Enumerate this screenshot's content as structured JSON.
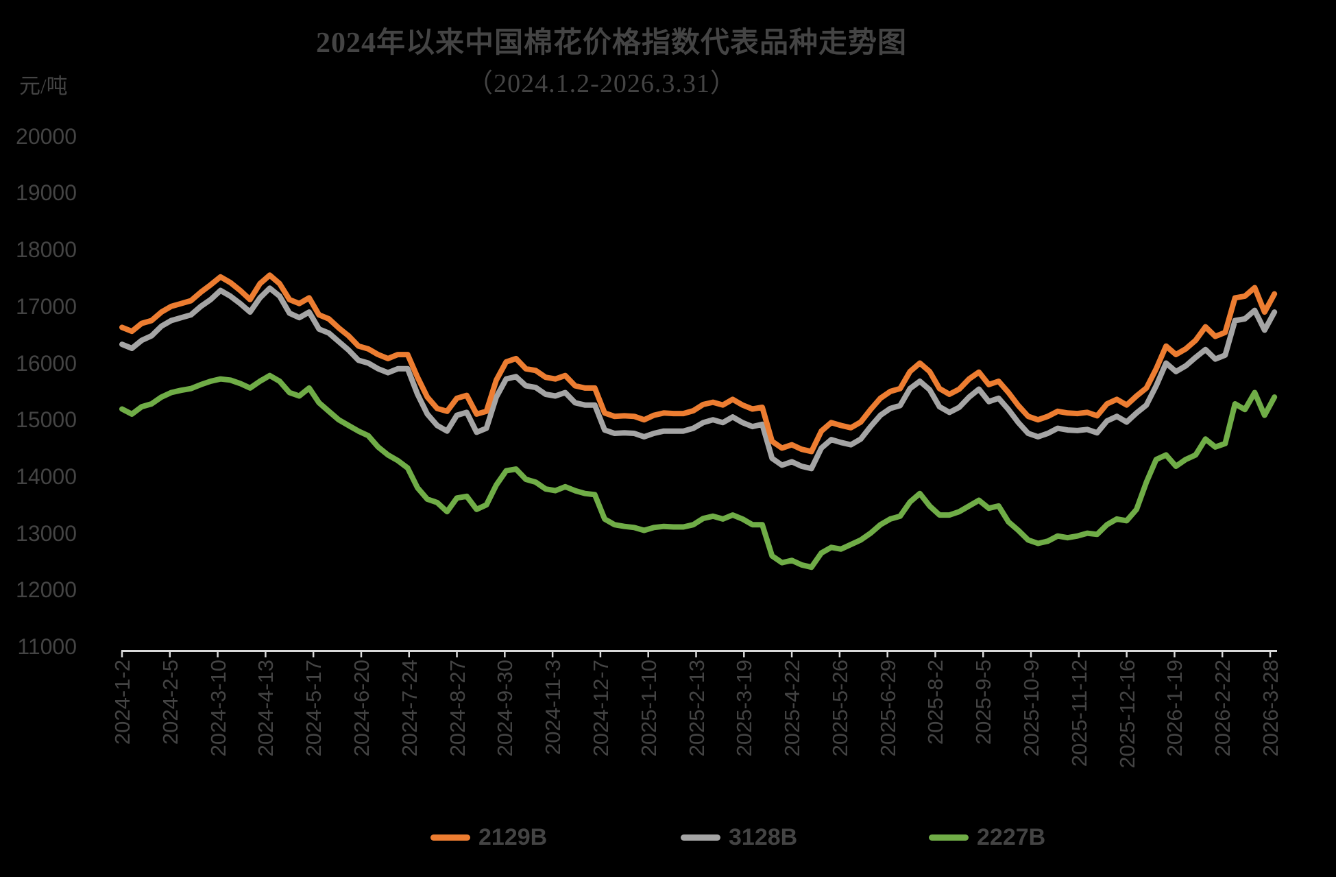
{
  "title": "2024年以来中国棉花价格指数代表品种走势图",
  "subtitle": "（2024.1.2-2026.3.31）",
  "y_axis": {
    "unit": "元/吨",
    "min": 11000,
    "max": 20000,
    "tick_step": 1000,
    "tick_labels": [
      "20000",
      "19000",
      "18000",
      "17000",
      "16000",
      "15000",
      "14000",
      "13000",
      "12000",
      "11000"
    ]
  },
  "x_axis": {
    "tick_interval_days": 34,
    "tick_labels": [
      "2024-1-2",
      "2024-2-5",
      "2024-3-10",
      "2024-4-13",
      "2024-5-17",
      "2024-6-20",
      "2024-7-24",
      "2024-8-27",
      "2024-9-30",
      "2024-11-3",
      "2024-12-7",
      "2025-1-10",
      "2025-2-13",
      "2025-3-19",
      "2025-4-22",
      "2025-5-26",
      "2025-6-29",
      "2025-8-2",
      "2025-9-5",
      "2025-10-9",
      "2025-11-12",
      "2025-12-16",
      "2026-1-19",
      "2026-2-22",
      "2026-3-28"
    ]
  },
  "legend": [
    {
      "label": "2129B",
      "color": "#ED7D31"
    },
    {
      "label": "3128B",
      "color": "#A5A5A5"
    },
    {
      "label": "2227B",
      "color": "#70AD47"
    }
  ],
  "colors": {
    "background": "#000000",
    "axis_line": "#D9D9D9",
    "text": "#444444",
    "series_2129B": "#ED7D31",
    "series_3128B": "#A5A5A5",
    "series_2227B": "#70AD47"
  },
  "chart_data": {
    "type": "line",
    "title": "2024年以来中国棉花价格指数代表品种走势图（2024.1.2-2026.3.31）",
    "ylabel": "元/吨",
    "ylim": [
      11000,
      20000
    ],
    "x_range": [
      "2024-1-2",
      "2026-3-31"
    ],
    "x_start_date": "2024-1-2",
    "x_step_days": 7,
    "x_total_days": 819,
    "grid": false,
    "legend_position": "bottom",
    "series": [
      {
        "name": "2129B",
        "color": "#ED7D31",
        "values": [
          16630,
          16560,
          16700,
          16750,
          16900,
          17000,
          17050,
          17100,
          17250,
          17380,
          17520,
          17420,
          17280,
          17120,
          17400,
          17550,
          17400,
          17120,
          17050,
          17150,
          16850,
          16780,
          16620,
          16480,
          16300,
          16250,
          16150,
          16080,
          16150,
          16150,
          15750,
          15400,
          15200,
          15150,
          15380,
          15430,
          15100,
          15150,
          15700,
          16020,
          16080,
          15900,
          15870,
          15750,
          15720,
          15780,
          15600,
          15560,
          15560,
          15120,
          15060,
          15070,
          15060,
          15000,
          15080,
          15120,
          15110,
          15110,
          15160,
          15270,
          15310,
          15260,
          15360,
          15260,
          15190,
          15220,
          14620,
          14500,
          14560,
          14480,
          14440,
          14800,
          14950,
          14900,
          14860,
          14960,
          15180,
          15380,
          15500,
          15550,
          15850,
          16000,
          15850,
          15550,
          15450,
          15540,
          15720,
          15840,
          15620,
          15680,
          15480,
          15250,
          15060,
          15000,
          15060,
          15150,
          15120,
          15110,
          15130,
          15070,
          15280,
          15360,
          15260,
          15420,
          15560,
          15900,
          16300,
          16150,
          16250,
          16400,
          16640,
          16470,
          16540,
          17150,
          17180,
          17330,
          16900,
          17220
        ]
      },
      {
        "name": "3128B",
        "color": "#A5A5A5",
        "values": [
          16330,
          16260,
          16400,
          16480,
          16650,
          16750,
          16800,
          16850,
          17000,
          17120,
          17280,
          17180,
          17050,
          16900,
          17150,
          17320,
          17180,
          16880,
          16800,
          16900,
          16600,
          16530,
          16380,
          16230,
          16050,
          16000,
          15900,
          15830,
          15900,
          15900,
          15450,
          15100,
          14900,
          14800,
          15080,
          15130,
          14780,
          14850,
          15400,
          15720,
          15760,
          15600,
          15570,
          15450,
          15420,
          15480,
          15300,
          15260,
          15260,
          14820,
          14760,
          14770,
          14760,
          14700,
          14760,
          14800,
          14800,
          14800,
          14850,
          14950,
          15000,
          14950,
          15050,
          14950,
          14880,
          14920,
          14320,
          14200,
          14260,
          14180,
          14140,
          14500,
          14650,
          14600,
          14560,
          14660,
          14880,
          15080,
          15200,
          15250,
          15550,
          15680,
          15530,
          15230,
          15130,
          15220,
          15400,
          15540,
          15320,
          15380,
          15180,
          14950,
          14760,
          14700,
          14760,
          14850,
          14820,
          14810,
          14830,
          14770,
          14980,
          15060,
          14960,
          15120,
          15260,
          15600,
          16000,
          15850,
          15950,
          16100,
          16240,
          16070,
          16140,
          16750,
          16780,
          16930,
          16580,
          16900
        ]
      },
      {
        "name": "2227B",
        "color": "#70AD47",
        "values": [
          15190,
          15100,
          15230,
          15280,
          15400,
          15480,
          15520,
          15550,
          15620,
          15680,
          15720,
          15700,
          15640,
          15560,
          15680,
          15780,
          15680,
          15480,
          15420,
          15560,
          15300,
          15150,
          15000,
          14900,
          14800,
          14720,
          14520,
          14380,
          14280,
          14150,
          13800,
          13600,
          13540,
          13380,
          13620,
          13650,
          13420,
          13500,
          13850,
          14100,
          14130,
          13950,
          13900,
          13780,
          13750,
          13820,
          13750,
          13700,
          13680,
          13250,
          13150,
          13120,
          13100,
          13050,
          13100,
          13120,
          13110,
          13110,
          13150,
          13260,
          13300,
          13250,
          13320,
          13250,
          13150,
          13150,
          12600,
          12480,
          12520,
          12440,
          12400,
          12650,
          12750,
          12720,
          12800,
          12880,
          13000,
          13150,
          13250,
          13300,
          13550,
          13700,
          13480,
          13320,
          13320,
          13380,
          13480,
          13580,
          13440,
          13480,
          13200,
          13050,
          12880,
          12820,
          12860,
          12950,
          12920,
          12950,
          13000,
          12980,
          13150,
          13250,
          13220,
          13420,
          13900,
          14300,
          14380,
          14180,
          14300,
          14380,
          14660,
          14520,
          14580,
          15280,
          15180,
          15480,
          15080,
          15400
        ]
      }
    ]
  }
}
